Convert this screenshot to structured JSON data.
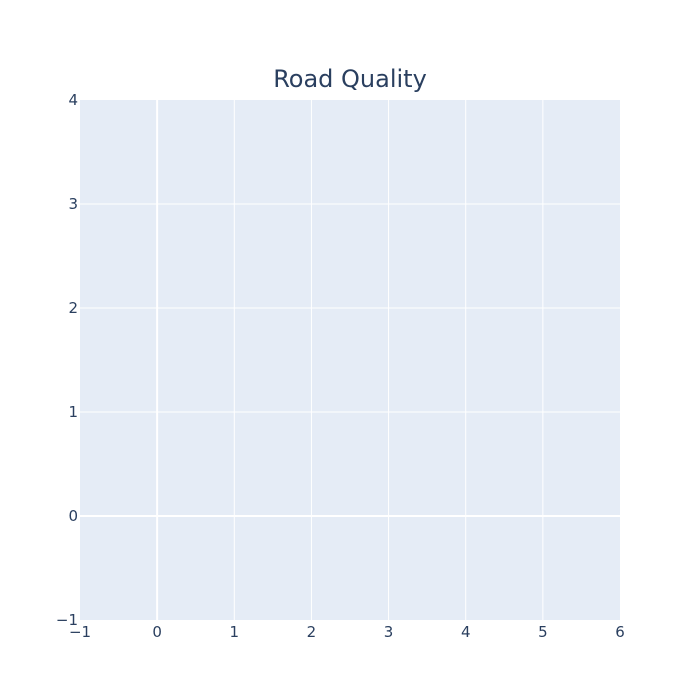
{
  "chart_data": {
    "type": "scatter",
    "title": "Road Quality",
    "xlabel": "",
    "ylabel": "",
    "xlim": [
      -1,
      6
    ],
    "ylim": [
      -1,
      4
    ],
    "xticks": [
      "−1",
      "0",
      "1",
      "2",
      "3",
      "4",
      "5",
      "6"
    ],
    "yticks": [
      "−1",
      "0",
      "1",
      "2",
      "3",
      "4"
    ],
    "grid": true,
    "series": [],
    "colors": {
      "plot_background": "#e5ecf6",
      "paper_background": "#ffffff",
      "gridline": "#ffffff",
      "text": "#2a3f5f"
    }
  }
}
